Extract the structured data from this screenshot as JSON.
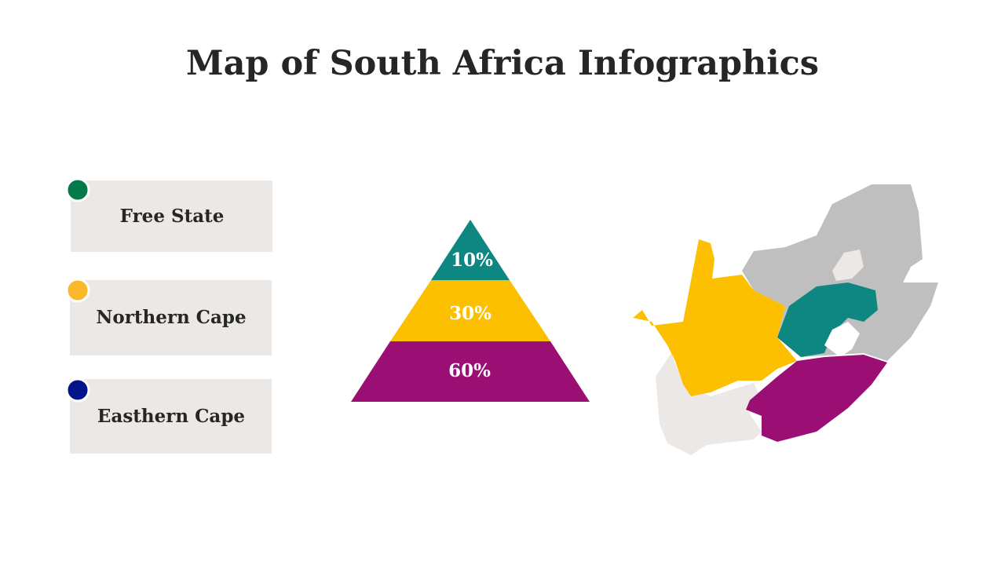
{
  "header": {
    "title": "Map of South Africa Infographics"
  },
  "legend": {
    "items": [
      {
        "label": "Free State"
      },
      {
        "label": "Northern Cape"
      },
      {
        "label": "Easthern Cape"
      }
    ]
  },
  "pyramid": {
    "levels": [
      {
        "label": "10%"
      },
      {
        "label": "30%"
      },
      {
        "label": "60%"
      }
    ]
  }
}
